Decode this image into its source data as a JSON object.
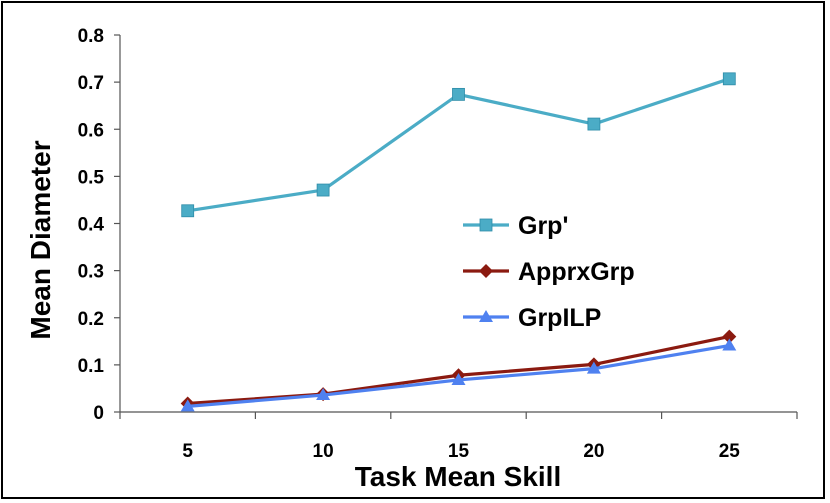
{
  "chart_data": {
    "type": "line",
    "xlabel": "Task Mean Skill",
    "ylabel": "Mean Diameter",
    "categories": [
      "5",
      "10",
      "15",
      "20",
      "25"
    ],
    "x": [
      5,
      10,
      15,
      20,
      25
    ],
    "ylim": [
      0,
      0.8
    ],
    "yticks": [
      "0",
      "0.1",
      "0.2",
      "0.3",
      "0.4",
      "0.5",
      "0.6",
      "0.7",
      "0.8"
    ],
    "grid": false,
    "legend_position": "center-right",
    "series": [
      {
        "name": "Grp'",
        "values": [
          0.427,
          0.471,
          0.674,
          0.611,
          0.707
        ],
        "color": "#4BACC6",
        "marker": "square"
      },
      {
        "name": "ApprxGrp",
        "values": [
          0.018,
          0.038,
          0.078,
          0.101,
          0.16
        ],
        "color": "#8B1A10",
        "marker": "diamond"
      },
      {
        "name": "GrpILP",
        "values": [
          0.012,
          0.036,
          0.068,
          0.092,
          0.141
        ],
        "color": "#4F81F0",
        "marker": "triangle"
      }
    ]
  }
}
